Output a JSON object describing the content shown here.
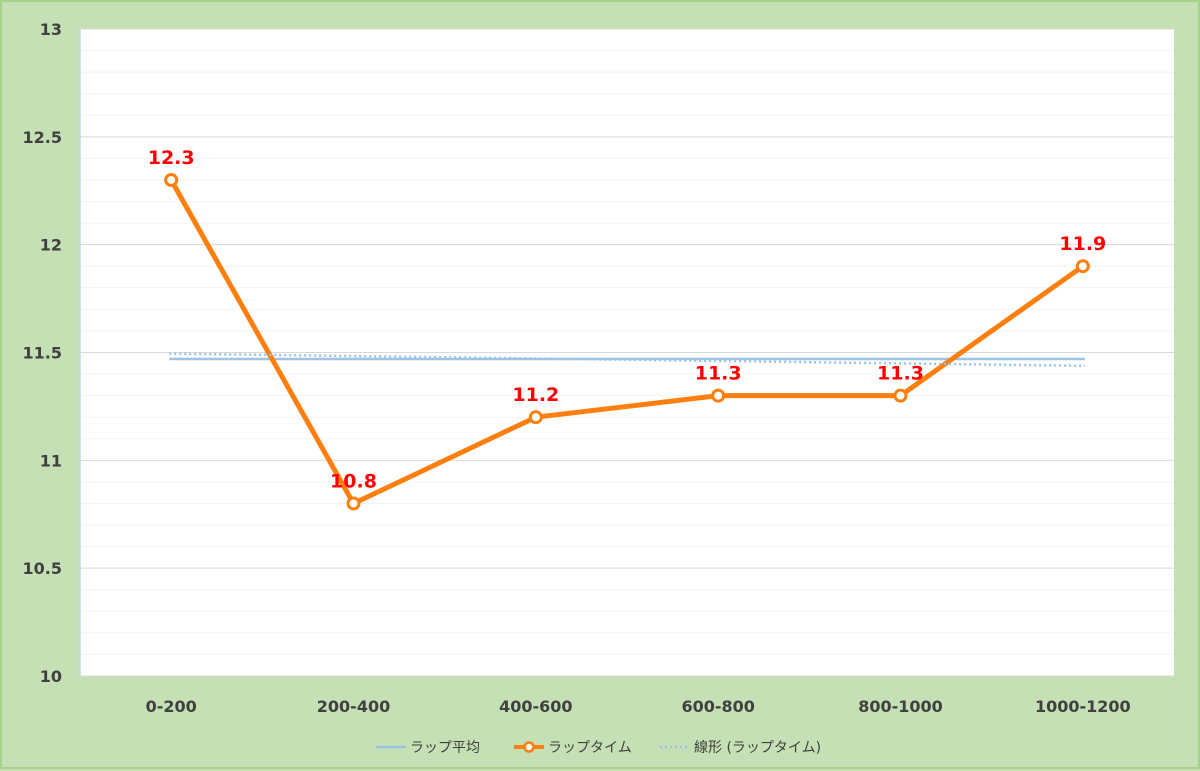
{
  "chart_data": {
    "type": "line",
    "categories": [
      "0-200",
      "200-400",
      "400-600",
      "600-800",
      "800-1000",
      "1000-1200"
    ],
    "ylim": [
      10,
      13
    ],
    "y_ticks": [
      "10",
      "10.5",
      "11",
      "11.5",
      "12",
      "12.5",
      "13"
    ],
    "y_tick_values": [
      10,
      10.5,
      11,
      11.5,
      12,
      12.5,
      13
    ],
    "y_minor_step": 0.1,
    "grid": true,
    "legend_position": "bottom",
    "series": [
      {
        "name": "ラップ平均",
        "kind": "constant",
        "values": [
          11.47,
          11.47,
          11.47,
          11.47,
          11.47,
          11.47
        ],
        "color": "#9dc3e6"
      },
      {
        "name": "ラップタイム",
        "kind": "line-markers",
        "values": [
          12.3,
          10.8,
          11.2,
          11.3,
          11.3,
          11.9
        ],
        "data_labels": [
          "12.3",
          "10.8",
          "11.2",
          "11.3",
          "11.3",
          "11.9"
        ],
        "color": "#ff7f0e"
      },
      {
        "name": "線形 (ラップタイム)",
        "kind": "trendline",
        "values": [
          11.495,
          11.484,
          11.473,
          11.461,
          11.45,
          11.438
        ],
        "color": "#9dc3e6"
      }
    ],
    "colors": {
      "plot_background": "#ffffff",
      "outer_background": "#c5e0b4",
      "grid_major": "#d9d9d9",
      "grid_minor": "#f2f2f2",
      "data_label": "#ff0000",
      "axis_text": "#404040"
    }
  }
}
